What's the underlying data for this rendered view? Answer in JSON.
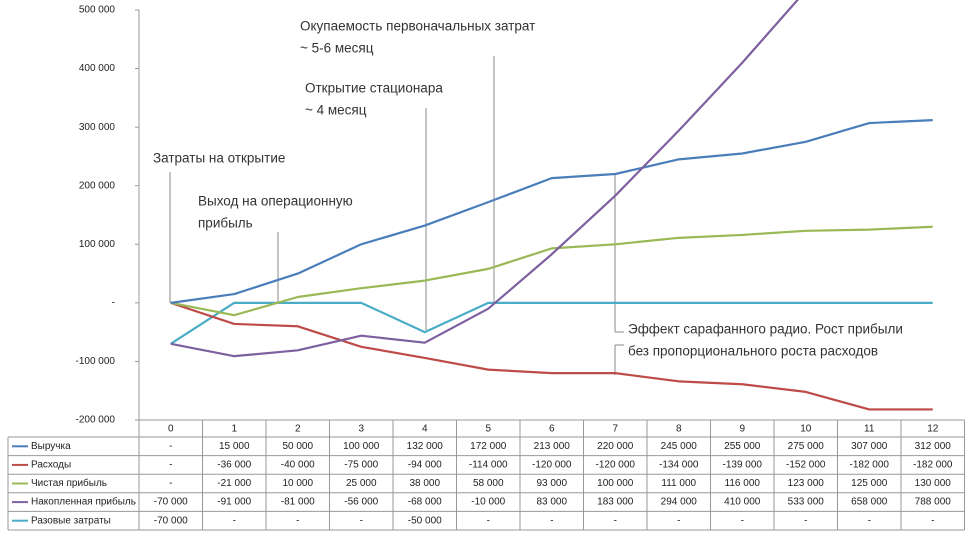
{
  "chart_data": {
    "type": "line",
    "categories": [
      "0",
      "1",
      "2",
      "3",
      "4",
      "5",
      "6",
      "7",
      "8",
      "9",
      "10",
      "11",
      "12"
    ],
    "ylim": [
      -200000,
      500000
    ],
    "yticks": [
      {
        "value": -200000,
        "label": "-200 000"
      },
      {
        "value": -100000,
        "label": "-100 000"
      },
      {
        "value": 0,
        "label": "-"
      },
      {
        "value": 100000,
        "label": "100 000"
      },
      {
        "value": 200000,
        "label": "200 000"
      },
      {
        "value": 300000,
        "label": "300 000"
      },
      {
        "value": 400000,
        "label": "400 000"
      },
      {
        "value": 500000,
        "label": "500 000"
      }
    ],
    "series": [
      {
        "name": "Выручка",
        "color": "#4a7ebb",
        "values": [
          0,
          15000,
          50000,
          100000,
          132000,
          172000,
          213000,
          220000,
          245000,
          255000,
          275000,
          307000,
          312000
        ],
        "value_labels": [
          "-",
          "15 000",
          "50 000",
          "100 000",
          "132 000",
          "172 000",
          "213 000",
          "220 000",
          "245 000",
          "255 000",
          "275 000",
          "307 000",
          "312 000"
        ]
      },
      {
        "name": "Расходы",
        "color": "#be4b48",
        "values": [
          0,
          -36000,
          -40000,
          -75000,
          -94000,
          -114000,
          -120000,
          -120000,
          -134000,
          -139000,
          -152000,
          -182000,
          -182000
        ],
        "value_labels": [
          "-",
          "-36 000",
          "-40 000",
          "-75 000",
          "-94 000",
          "-114 000",
          "-120 000",
          "-120 000",
          "-134 000",
          "-139 000",
          "-152 000",
          "-182 000",
          "-182 000"
        ]
      },
      {
        "name": "Чистая прибыль",
        "color": "#98b954",
        "values": [
          0,
          -21000,
          10000,
          25000,
          38000,
          58000,
          93000,
          100000,
          111000,
          116000,
          123000,
          125000,
          130000
        ],
        "value_labels": [
          "-",
          "-21 000",
          "10 000",
          "25 000",
          "38 000",
          "58 000",
          "93 000",
          "100 000",
          "111 000",
          "116 000",
          "123 000",
          "125 000",
          "130 000"
        ]
      },
      {
        "name": "Накопленная прибыль",
        "color": "#7d60a0",
        "values": [
          -70000,
          -91000,
          -81000,
          -56000,
          -68000,
          -10000,
          83000,
          183000,
          294000,
          410000,
          533000,
          658000,
          788000
        ],
        "value_labels": [
          "-70 000",
          "-91 000",
          "-81 000",
          "-56 000",
          "-68 000",
          "-10 000",
          "83 000",
          "183 000",
          "294 000",
          "410 000",
          "533 000",
          "658 000",
          "788 000"
        ]
      },
      {
        "name": "Разовые затраты",
        "color": "#4bacc6",
        "values": [
          -70000,
          0,
          0,
          0,
          -50000,
          0,
          0,
          0,
          0,
          0,
          0,
          0,
          0
        ],
        "value_labels": [
          "-70 000",
          "-",
          "-",
          "-",
          "-50 000",
          "-",
          "-",
          "-",
          "-",
          "-",
          "-",
          "-",
          "-"
        ]
      }
    ],
    "annotations": [
      {
        "lines": [
          "Затраты на открытие"
        ]
      },
      {
        "lines": [
          "Выход на операционную",
          "прибыль"
        ]
      },
      {
        "lines": [
          "Открытие стационара",
          "~ 4 месяц"
        ]
      },
      {
        "lines": [
          "Окупаемость первоначальных затрат",
          "~ 5-6 месяц"
        ]
      },
      {
        "lines": [
          "Эффект сарафанного радио. Рост прибыли",
          "без пропорционального роста расходов"
        ]
      }
    ]
  }
}
